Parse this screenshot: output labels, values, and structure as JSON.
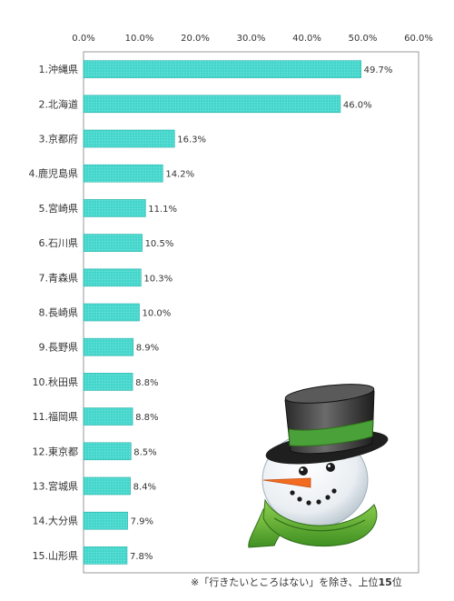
{
  "chart_data": {
    "type": "bar",
    "orientation": "horizontal",
    "categories": [
      "1.沖縄県",
      "2.北海道",
      "3.京都府",
      "4.鹿児島県",
      "5.宮崎県",
      "6.石川県",
      "7.青森県",
      "8.長崎県",
      "9.長野県",
      "10.秋田県",
      "11.福岡県",
      "12.東京都",
      "13.宮城県",
      "14.大分県",
      "15.山形県"
    ],
    "values": [
      49.7,
      46.0,
      16.3,
      14.2,
      11.1,
      10.5,
      10.3,
      10.0,
      8.9,
      8.8,
      8.8,
      8.5,
      8.4,
      7.9,
      7.8
    ],
    "value_labels": [
      "49.7%",
      "46.0%",
      "16.3%",
      "14.2%",
      "11.1%",
      "10.5%",
      "10.3%",
      "10.0%",
      "8.9%",
      "8.8%",
      "8.8%",
      "8.5%",
      "8.4%",
      "7.9%",
      "7.8%"
    ],
    "x_ticks": [
      "0.0%",
      "10.0%",
      "20.0%",
      "30.0%",
      "40.0%",
      "50.0%",
      "60.0%"
    ],
    "xlim": [
      0,
      60
    ],
    "axis_position": "top",
    "grid": false,
    "legend": "none",
    "bar_color": "#3fd4c9",
    "bar_edge_color": "#2bb3aa",
    "frame_color": "#9a9a9a"
  },
  "footnote": {
    "prefix": "※「行きたいところはない」を除き、上位",
    "bold": "15",
    "suffix": "位"
  },
  "illustration": {
    "icon": "snowman-icon",
    "hat_color": "#3a3a3a",
    "hat_band_color": "#4aa13a",
    "scarf_color": "#5cb030",
    "nose_color": "#f26b21"
  }
}
